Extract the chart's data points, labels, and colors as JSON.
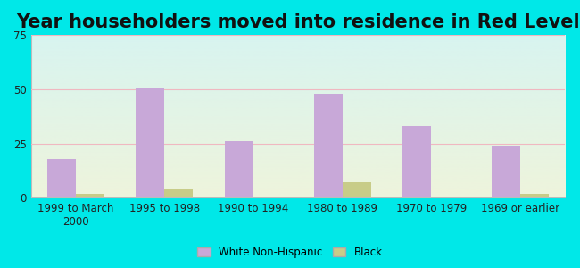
{
  "title": "Year householders moved into residence in Red Level",
  "categories": [
    "1999 to March\n2000",
    "1995 to 1998",
    "1990 to 1994",
    "1980 to 1989",
    "1970 to 1979",
    "1969 or earlier"
  ],
  "white_values": [
    18,
    51,
    26,
    48,
    33,
    24
  ],
  "black_values": [
    2,
    4,
    0,
    7,
    0,
    2
  ],
  "white_color": "#c8a8d8",
  "black_color": "#c8cc88",
  "ylim": [
    0,
    75
  ],
  "yticks": [
    0,
    25,
    50,
    75
  ],
  "background_color": "#00e8e8",
  "grad_top": "#d8f4f0",
  "grad_bottom": "#eef4dc",
  "grid_color": "#f0b8c0",
  "title_fontsize": 15,
  "tick_fontsize": 8.5,
  "legend_labels": [
    "White Non-Hispanic",
    "Black"
  ],
  "bar_width": 0.32
}
